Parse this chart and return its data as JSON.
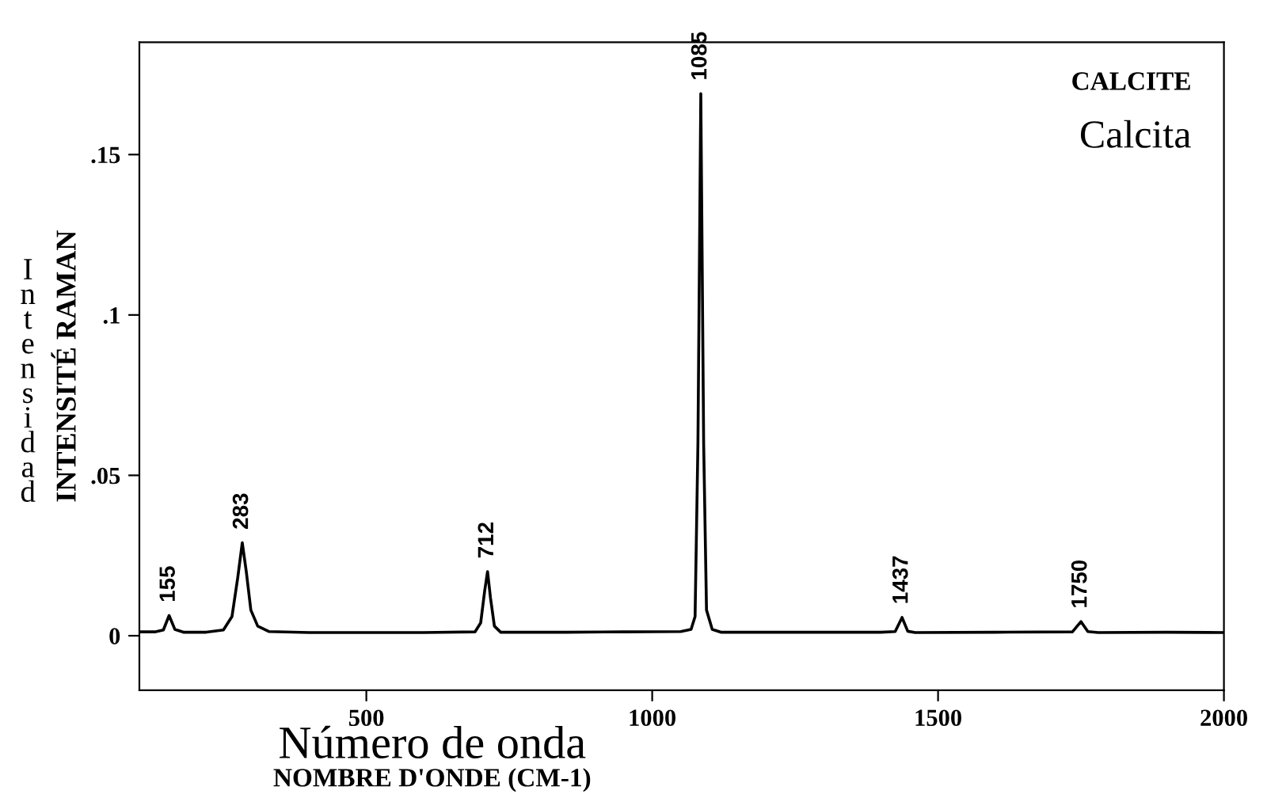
{
  "chart_data": {
    "type": "line",
    "title": "CALCITE",
    "subtitle": "Calcita",
    "xlabel": "NOMBRE D'ONDE (CM-1)",
    "ylabel": "INTENSITÉ RAMAN",
    "annotations": [
      "Número de onda",
      "Intensidad",
      {
        "text": "155",
        "x": 155,
        "y": 0.0063
      },
      {
        "text": "283",
        "x": 283,
        "y": 0.029
      },
      {
        "text": "712",
        "x": 712,
        "y": 0.02
      },
      {
        "text": "1085",
        "x": 1085,
        "y": 0.169
      },
      {
        "text": "1437",
        "x": 1437,
        "y": 0.0057
      },
      {
        "text": "1750",
        "x": 1750,
        "y": 0.0044
      }
    ],
    "x": [
      103,
      130,
      145,
      155,
      165,
      180,
      220,
      250,
      265,
      275,
      283,
      290,
      298,
      310,
      330,
      400,
      500,
      600,
      690,
      700,
      707,
      712,
      717,
      724,
      735,
      850,
      950,
      1050,
      1068,
      1075,
      1080,
      1085,
      1090,
      1095,
      1105,
      1120,
      1250,
      1400,
      1425,
      1437,
      1447,
      1460,
      1600,
      1735,
      1750,
      1762,
      1780,
      1900,
      2000
    ],
    "series": [
      {
        "color": "#000000",
        "values": [
          0.0012,
          0.0012,
          0.0018,
          0.0063,
          0.002,
          0.0011,
          0.0011,
          0.0018,
          0.006,
          0.018,
          0.029,
          0.02,
          0.008,
          0.003,
          0.0013,
          0.001,
          0.001,
          0.001,
          0.0012,
          0.004,
          0.014,
          0.02,
          0.012,
          0.003,
          0.0011,
          0.0011,
          0.0012,
          0.0013,
          0.002,
          0.006,
          0.06,
          0.169,
          0.06,
          0.008,
          0.002,
          0.0011,
          0.0011,
          0.0011,
          0.0013,
          0.0057,
          0.0014,
          0.001,
          0.0011,
          0.0012,
          0.0044,
          0.0013,
          0.001,
          0.0011,
          0.001
        ]
      }
    ],
    "xlim": [
      103,
      2000
    ],
    "ylim": [
      -0.017,
      0.185
    ],
    "xticks": [
      500,
      1000,
      1500,
      2000
    ],
    "yticks": [
      {
        "value": 0,
        "label": "0"
      },
      {
        "value": 0.05,
        "label": ".05"
      },
      {
        "value": 0.1,
        "label": ".1"
      },
      {
        "value": 0.15,
        "label": ".15"
      }
    ],
    "grid": false,
    "legend": false,
    "marker": "none",
    "line_style": "solid"
  }
}
